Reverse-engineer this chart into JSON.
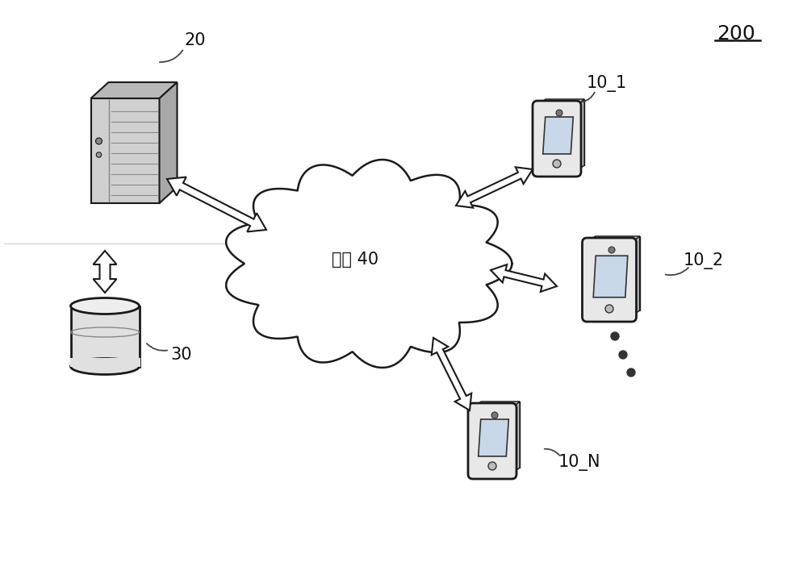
{
  "bg_color": "#ffffff",
  "label_200": "200",
  "label_20": "20",
  "label_30": "30",
  "label_network": "网络 40",
  "label_10_1": "10_1",
  "label_10_2": "10_2",
  "label_10_N": "10_N",
  "text_color": "#111111",
  "cloud_color": "#ffffff",
  "cloud_edge": "#1a1a1a",
  "device_edge": "#1a1a1a",
  "arrow_fill": "#ffffff",
  "arrow_edge": "#1a1a1a",
  "server_front": "#d0d0d0",
  "server_top": "#b8b8b8",
  "server_right": "#a8a8a8",
  "server_vent": "#b8b8b8",
  "db_body": "#e0e0e0",
  "db_top": "#eeeeee",
  "phone_body": "#e8e8e8",
  "phone_screen": "#c8d8e8",
  "phone_3d_side": "#c0c0c0",
  "phone_3d_top": "#d4d4d4"
}
